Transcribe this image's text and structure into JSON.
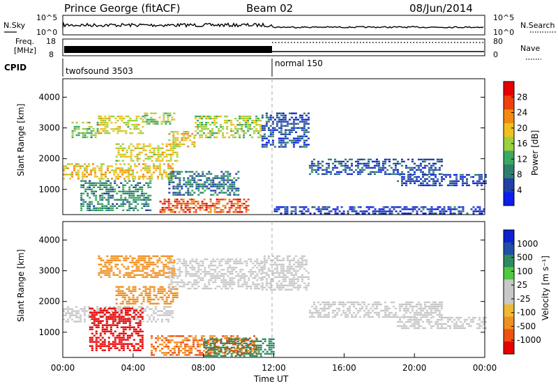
{
  "header": {
    "title": "Prince George (fitACF)",
    "beam": "Beam 02",
    "date": "08/Jun/2014"
  },
  "strips": {
    "nsky_label": "N.Sky",
    "nsky_ticks": [
      "10^5",
      "10^0"
    ],
    "nsearch_label": "N.Search",
    "nsearch_ticks": [
      "10^5",
      "10^0"
    ],
    "freq_label_1": "Freq.",
    "freq_label_2": "[MHz]",
    "freq_ticks": [
      "18",
      "8"
    ],
    "nave_label": "Nave",
    "nave_ticks": [
      "80",
      "0"
    ],
    "cpid_label": "CPID",
    "cpid_segments": [
      {
        "name": "twofsound 3503",
        "start": "00:00",
        "end": "12:00"
      },
      {
        "name": "normal 150",
        "start": "12:00",
        "end": "24:00"
      }
    ]
  },
  "colors": {
    "power_scale": [
      "#0a1ef0",
      "#2040a8",
      "#2e7e6e",
      "#3ca860",
      "#9cd040",
      "#f0c020",
      "#f08a10",
      "#f04010",
      "#e80000"
    ],
    "velocity_scale": [
      "#e80000",
      "#f05010",
      "#f09020",
      "#f0b830",
      "#c8c8c8",
      "#c8c8c8",
      "#50c840",
      "#2e8a60",
      "#2050a8",
      "#1020d0"
    ]
  },
  "chart_data": [
    {
      "type": "heatmap",
      "name": "power",
      "xlabel": "",
      "ylabel": "Slant Range [km]",
      "x_ticks": [
        "00:00",
        "04:00",
        "08:00",
        "12:00",
        "16:00",
        "20:00",
        "00:00"
      ],
      "y_ticks": [
        1000,
        2000,
        3000,
        4000
      ],
      "ylim": [
        180,
        4600
      ],
      "xlim_hours": [
        0,
        24
      ],
      "colorbar_label": "Power [dB]",
      "colorbar_ticks": [
        4,
        8,
        12,
        16,
        20,
        24,
        28
      ],
      "colorbar_range": [
        0,
        32
      ],
      "regions": [
        {
          "t": [
            0,
            6.2
          ],
          "r": [
            1350,
            1850
          ],
          "level": 20
        },
        {
          "t": [
            0.5,
            2.0
          ],
          "r": [
            2700,
            3200
          ],
          "level": 14
        },
        {
          "t": [
            2.0,
            4.5
          ],
          "r": [
            2800,
            3400
          ],
          "level": 18
        },
        {
          "t": [
            4.5,
            6.3
          ],
          "r": [
            3100,
            3500
          ],
          "level": 16
        },
        {
          "t": [
            3.0,
            6.5
          ],
          "r": [
            1900,
            2500
          ],
          "level": 18
        },
        {
          "t": [
            6.0,
            7.5
          ],
          "r": [
            2400,
            2900
          ],
          "level": 20
        },
        {
          "t": [
            7.5,
            11.3
          ],
          "r": [
            2700,
            3400
          ],
          "level": 16
        },
        {
          "t": [
            5.5,
            10.5
          ],
          "r": [
            250,
            700
          ],
          "level": 26
        },
        {
          "t": [
            6.0,
            10.0
          ],
          "r": [
            800,
            1600
          ],
          "level": 8
        },
        {
          "t": [
            1.0,
            5.0
          ],
          "r": [
            300,
            1300
          ],
          "level": 10
        },
        {
          "t": [
            11.3,
            14.0
          ],
          "r": [
            2400,
            3500
          ],
          "level": 6
        },
        {
          "t": [
            14.0,
            21.5
          ],
          "r": [
            1500,
            2000
          ],
          "level": 6
        },
        {
          "t": [
            19.0,
            24.0
          ],
          "r": [
            1100,
            1500
          ],
          "level": 5
        },
        {
          "t": [
            12.0,
            24.0
          ],
          "r": [
            200,
            450
          ],
          "level": 4
        }
      ]
    },
    {
      "type": "heatmap",
      "name": "velocity",
      "xlabel": "Time UT",
      "ylabel": "Slant Range [km]",
      "x_ticks": [
        "00:00",
        "04:00",
        "08:00",
        "12:00",
        "16:00",
        "20:00",
        "00:00"
      ],
      "y_ticks": [
        1000,
        2000,
        3000,
        4000
      ],
      "ylim": [
        180,
        4600
      ],
      "xlim_hours": [
        0,
        24
      ],
      "colorbar_label": "Velocity [m s⁻¹]",
      "colorbar_ticks": [
        "-1000",
        "-500",
        "-100",
        "-25",
        "25",
        "100",
        "500",
        "1000"
      ],
      "regions": [
        {
          "t": [
            0,
            6.2
          ],
          "r": [
            1350,
            1850
          ],
          "level": 0
        },
        {
          "t": [
            2.0,
            6.3
          ],
          "r": [
            2800,
            3500
          ],
          "level": -200
        },
        {
          "t": [
            3.0,
            6.5
          ],
          "r": [
            1900,
            2500
          ],
          "level": -150
        },
        {
          "t": [
            6.0,
            11.3
          ],
          "r": [
            2400,
            3400
          ],
          "level": 0
        },
        {
          "t": [
            5.0,
            11.0
          ],
          "r": [
            250,
            900
          ],
          "level": -300
        },
        {
          "t": [
            8.0,
            12.0
          ],
          "r": [
            200,
            800
          ],
          "level": 150
        },
        {
          "t": [
            11.3,
            14.0
          ],
          "r": [
            2400,
            3500
          ],
          "level": 0
        },
        {
          "t": [
            14.0,
            21.5
          ],
          "r": [
            1500,
            2000
          ],
          "level": 0
        },
        {
          "t": [
            19.0,
            24.0
          ],
          "r": [
            1100,
            1500
          ],
          "level": 0
        },
        {
          "t": [
            1.5,
            4.5
          ],
          "r": [
            400,
            1800
          ],
          "level": -800
        }
      ]
    }
  ]
}
